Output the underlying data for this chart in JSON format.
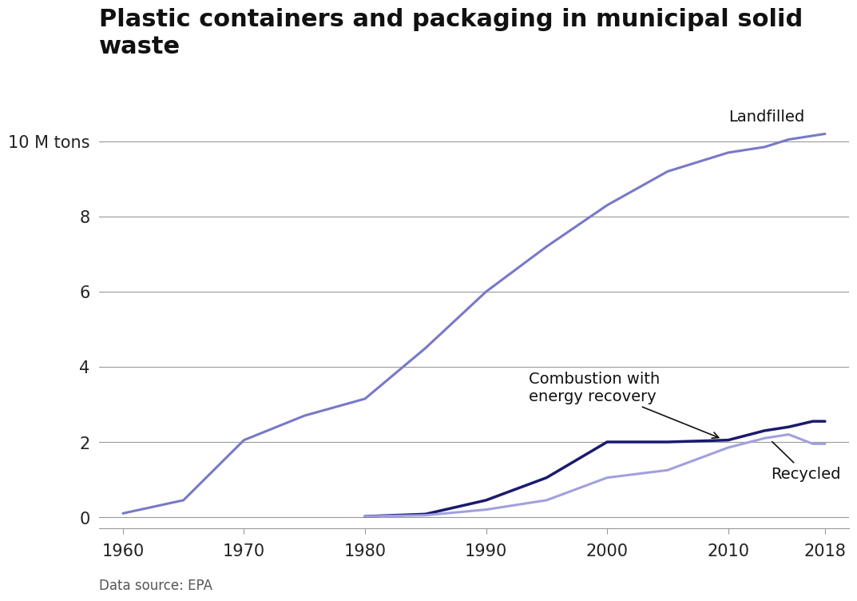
{
  "title": "Plastic containers and packaging in municipal solid\nwaste",
  "source": "Data source: EPA",
  "background_color": "#ffffff",
  "landfilled": {
    "years": [
      1960,
      1965,
      1970,
      1975,
      1980,
      1985,
      1990,
      1995,
      2000,
      2005,
      2010,
      2013,
      2015,
      2017,
      2018
    ],
    "values": [
      0.1,
      0.45,
      2.05,
      2.7,
      3.15,
      4.5,
      6.0,
      7.2,
      8.3,
      9.2,
      9.7,
      9.85,
      10.05,
      10.15,
      10.2
    ],
    "color": "#7878c8",
    "linewidth": 2.2
  },
  "combustion": {
    "years": [
      1980,
      1985,
      1990,
      1995,
      2000,
      2005,
      2010,
      2013,
      2015,
      2017,
      2018
    ],
    "values": [
      0.02,
      0.08,
      0.45,
      1.05,
      2.0,
      2.0,
      2.05,
      2.3,
      2.4,
      2.55,
      2.55
    ],
    "color": "#1a1a6e",
    "linewidth": 2.5
  },
  "recycled": {
    "years": [
      1980,
      1985,
      1990,
      1995,
      2000,
      2005,
      2010,
      2013,
      2015,
      2017,
      2018
    ],
    "values": [
      0.02,
      0.05,
      0.2,
      0.45,
      1.05,
      1.25,
      1.85,
      2.1,
      2.2,
      1.95,
      1.95
    ],
    "color": "#a0a0e0",
    "linewidth": 2.2
  },
  "yticks": [
    0,
    2,
    4,
    6,
    8,
    10
  ],
  "ylim": [
    -0.3,
    11.0
  ],
  "xlim": [
    1958,
    2020
  ],
  "xticks": [
    1960,
    1970,
    1980,
    1990,
    2000,
    2010,
    2018
  ],
  "grid_color": "#999999",
  "tick_color": "#222222"
}
